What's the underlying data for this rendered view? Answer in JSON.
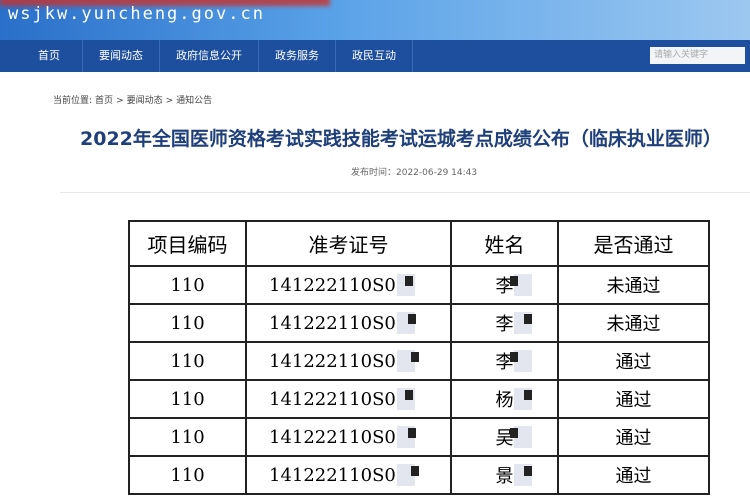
{
  "header": {
    "site_url": "wsjkw.yuncheng.gov.cn"
  },
  "nav": {
    "items": [
      "首页",
      "要闻动态",
      "政府信息公开",
      "政务服务",
      "政民互动"
    ],
    "search_placeholder": "请输入关键字"
  },
  "breadcrumb": [
    "当前位置:",
    "首页",
    ">",
    "要闻动态",
    ">",
    "通知公告"
  ],
  "article": {
    "title": "2022年全国医师资格考试实践技能考试运城考点成绩公布（临床执业医师）",
    "publish_time": "发布时间：2022-06-29 14:43"
  },
  "table": {
    "headers": [
      "项目编码",
      "准考证号",
      "姓名",
      "是否通过"
    ],
    "rows": [
      [
        "110",
        "141222110S0",
        "李",
        "未通过"
      ],
      [
        "110",
        "141222110S0",
        "李",
        "未通过"
      ],
      [
        "110",
        "141222110S0",
        "李",
        "通过"
      ],
      [
        "110",
        "141222110S0",
        "杨",
        "通过"
      ],
      [
        "110",
        "141222110S0",
        "吴",
        "通过"
      ],
      [
        "110",
        "141222110S0",
        "景",
        "通过"
      ]
    ]
  }
}
